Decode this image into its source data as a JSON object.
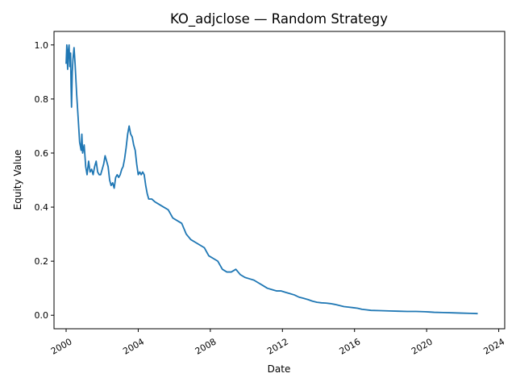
{
  "chart_data": {
    "type": "line",
    "title": "KO_adjclose — Random Strategy",
    "xlabel": "Date",
    "ylabel": "Equity Value",
    "xlim": [
      "1999-05-01",
      "2024-05-01"
    ],
    "ylim": [
      -0.05,
      1.05
    ],
    "x_ticks": [
      {
        "date": "2000-01-01",
        "label": "2000"
      },
      {
        "date": "2004-01-01",
        "label": "2004"
      },
      {
        "date": "2008-01-01",
        "label": "2008"
      },
      {
        "date": "2012-01-01",
        "label": "2012"
      },
      {
        "date": "2016-01-01",
        "label": "2016"
      },
      {
        "date": "2020-01-01",
        "label": "2020"
      },
      {
        "date": "2024-01-01",
        "label": "2024"
      }
    ],
    "y_ticks": [
      {
        "value": 0.0,
        "label": "0.0"
      },
      {
        "value": 0.2,
        "label": "0.2"
      },
      {
        "value": 0.4,
        "label": "0.4"
      },
      {
        "value": 0.6,
        "label": "0.6"
      },
      {
        "value": 0.8,
        "label": "0.8"
      },
      {
        "value": 1.0,
        "label": "1.0"
      }
    ],
    "grid": false,
    "line_color": "#1f77b4",
    "series": [
      {
        "points": [
          [
            "2000-01-01",
            0.93
          ],
          [
            "2000-01-15",
            1.0
          ],
          [
            "2000-02-01",
            0.91
          ],
          [
            "2000-02-15",
            0.98
          ],
          [
            "2000-03-01",
            1.0
          ],
          [
            "2000-03-15",
            0.92
          ],
          [
            "2000-04-01",
            0.97
          ],
          [
            "2000-04-10",
            0.85
          ],
          [
            "2000-04-20",
            0.77
          ],
          [
            "2000-05-05",
            0.9
          ],
          [
            "2000-05-20",
            0.95
          ],
          [
            "2000-06-10",
            0.99
          ],
          [
            "2000-07-01",
            0.93
          ],
          [
            "2000-08-01",
            0.82
          ],
          [
            "2000-09-01",
            0.73
          ],
          [
            "2000-10-01",
            0.64
          ],
          [
            "2000-11-01",
            0.61
          ],
          [
            "2000-11-15",
            0.67
          ],
          [
            "2000-12-01",
            0.6
          ],
          [
            "2001-01-01",
            0.63
          ],
          [
            "2001-02-01",
            0.55
          ],
          [
            "2001-03-01",
            0.52
          ],
          [
            "2001-04-01",
            0.57
          ],
          [
            "2001-05-01",
            0.53
          ],
          [
            "2001-06-01",
            0.54
          ],
          [
            "2001-07-01",
            0.52
          ],
          [
            "2001-08-01",
            0.55
          ],
          [
            "2001-09-01",
            0.57
          ],
          [
            "2001-10-01",
            0.53
          ],
          [
            "2001-11-01",
            0.52
          ],
          [
            "2001-12-01",
            0.52
          ],
          [
            "2002-01-01",
            0.54
          ],
          [
            "2002-02-01",
            0.56
          ],
          [
            "2002-03-01",
            0.59
          ],
          [
            "2002-04-01",
            0.57
          ],
          [
            "2002-05-01",
            0.55
          ],
          [
            "2002-06-01",
            0.5
          ],
          [
            "2002-07-01",
            0.48
          ],
          [
            "2002-08-01",
            0.49
          ],
          [
            "2002-09-01",
            0.47
          ],
          [
            "2002-10-01",
            0.51
          ],
          [
            "2002-11-01",
            0.52
          ],
          [
            "2002-12-01",
            0.51
          ],
          [
            "2003-01-01",
            0.52
          ],
          [
            "2003-02-01",
            0.54
          ],
          [
            "2003-03-01",
            0.55
          ],
          [
            "2003-04-01",
            0.58
          ],
          [
            "2003-05-01",
            0.62
          ],
          [
            "2003-06-01",
            0.67
          ],
          [
            "2003-07-01",
            0.7
          ],
          [
            "2003-08-01",
            0.67
          ],
          [
            "2003-09-01",
            0.66
          ],
          [
            "2003-10-01",
            0.63
          ],
          [
            "2003-11-01",
            0.61
          ],
          [
            "2003-12-01",
            0.56
          ],
          [
            "2004-01-01",
            0.52
          ],
          [
            "2004-02-01",
            0.53
          ],
          [
            "2004-03-01",
            0.52
          ],
          [
            "2004-04-01",
            0.53
          ],
          [
            "2004-05-01",
            0.52
          ],
          [
            "2004-06-01",
            0.48
          ],
          [
            "2004-07-01",
            0.45
          ],
          [
            "2004-08-01",
            0.43
          ],
          [
            "2004-10-01",
            0.43
          ],
          [
            "2004-12-01",
            0.42
          ],
          [
            "2005-03-01",
            0.41
          ],
          [
            "2005-06-01",
            0.4
          ],
          [
            "2005-09-01",
            0.39
          ],
          [
            "2005-12-01",
            0.36
          ],
          [
            "2006-03-01",
            0.35
          ],
          [
            "2006-06-01",
            0.34
          ],
          [
            "2006-09-01",
            0.3
          ],
          [
            "2006-12-01",
            0.28
          ],
          [
            "2007-03-01",
            0.27
          ],
          [
            "2007-06-01",
            0.26
          ],
          [
            "2007-09-01",
            0.25
          ],
          [
            "2007-12-01",
            0.22
          ],
          [
            "2008-03-01",
            0.21
          ],
          [
            "2008-06-01",
            0.2
          ],
          [
            "2008-09-01",
            0.17
          ],
          [
            "2008-12-01",
            0.16
          ],
          [
            "2009-03-01",
            0.16
          ],
          [
            "2009-06-01",
            0.17
          ],
          [
            "2009-09-01",
            0.15
          ],
          [
            "2009-12-01",
            0.14
          ],
          [
            "2010-03-01",
            0.135
          ],
          [
            "2010-06-01",
            0.13
          ],
          [
            "2010-09-01",
            0.12
          ],
          [
            "2010-12-01",
            0.11
          ],
          [
            "2011-03-01",
            0.1
          ],
          [
            "2011-06-01",
            0.095
          ],
          [
            "2011-09-01",
            0.09
          ],
          [
            "2011-12-01",
            0.09
          ],
          [
            "2012-03-01",
            0.085
          ],
          [
            "2012-06-01",
            0.08
          ],
          [
            "2012-09-01",
            0.075
          ],
          [
            "2012-12-01",
            0.067
          ],
          [
            "2013-03-01",
            0.063
          ],
          [
            "2013-06-01",
            0.058
          ],
          [
            "2013-09-01",
            0.052
          ],
          [
            "2013-12-01",
            0.048
          ],
          [
            "2014-03-01",
            0.046
          ],
          [
            "2014-06-01",
            0.045
          ],
          [
            "2014-09-01",
            0.043
          ],
          [
            "2014-12-01",
            0.04
          ],
          [
            "2015-03-01",
            0.036
          ],
          [
            "2015-06-01",
            0.032
          ],
          [
            "2015-09-01",
            0.03
          ],
          [
            "2015-12-01",
            0.028
          ],
          [
            "2016-03-01",
            0.026
          ],
          [
            "2016-06-01",
            0.022
          ],
          [
            "2016-09-01",
            0.02
          ],
          [
            "2016-12-01",
            0.018
          ],
          [
            "2017-06-01",
            0.017
          ],
          [
            "2017-12-01",
            0.016
          ],
          [
            "2018-06-01",
            0.015
          ],
          [
            "2018-12-01",
            0.014
          ],
          [
            "2019-06-01",
            0.014
          ],
          [
            "2019-12-01",
            0.013
          ],
          [
            "2020-03-01",
            0.012
          ],
          [
            "2020-06-01",
            0.011
          ],
          [
            "2020-12-01",
            0.01
          ],
          [
            "2021-06-01",
            0.009
          ],
          [
            "2021-12-01",
            0.008
          ],
          [
            "2022-06-01",
            0.007
          ],
          [
            "2022-11-01",
            0.006
          ]
        ]
      }
    ]
  }
}
